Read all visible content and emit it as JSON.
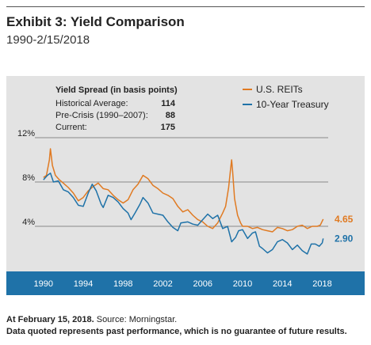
{
  "header": {
    "title": "Exhibit 3: Yield Comparison",
    "subtitle": "1990-2/15/2018"
  },
  "spread_box": {
    "title": "Yield Spread (in basis points)",
    "rows": [
      {
        "label": "Historical Average:",
        "value": "114"
      },
      {
        "label": "Pre-Crisis (1990–2007):",
        "value": "88"
      },
      {
        "label": "Current:",
        "value": "175"
      }
    ]
  },
  "colors": {
    "reits": "#e07a22",
    "treasury": "#1f72a8",
    "panel_bg": "#e3e3e3",
    "axis_bar": "#1f72a8"
  },
  "footer": {
    "date_bold": "At February 15, 2018.",
    "source": " Source: Morningstar.",
    "disclaimer": "Data quoted represents past performance, which is no guarantee of future results."
  },
  "chart_data": {
    "type": "line",
    "title": "Exhibit 3: Yield Comparison",
    "subtitle": "1990-2/15/2018",
    "xlabel": "",
    "ylabel": "",
    "ylim": [
      0,
      12
    ],
    "xlim": [
      1989.3,
      2018.6
    ],
    "y_ticks": [
      4,
      8,
      12
    ],
    "y_tick_labels": [
      "4%",
      "8%",
      "12%"
    ],
    "x_ticks": [
      1990,
      1994,
      1998,
      2002,
      2006,
      2010,
      2014,
      2018
    ],
    "x_tick_labels": [
      "1990",
      "1994",
      "1998",
      "2002",
      "2006",
      "2010",
      "2014",
      "2018"
    ],
    "grid": "horizontal",
    "legend_position": "top-right",
    "series": [
      {
        "name": "U.S. REITs",
        "color": "#e07a22",
        "end_label": "4.65",
        "points": [
          [
            1990.0,
            8.4
          ],
          [
            1990.3,
            8.6
          ],
          [
            1990.6,
            10.0
          ],
          [
            1990.7,
            11.0
          ],
          [
            1990.9,
            9.5
          ],
          [
            1991.2,
            8.6
          ],
          [
            1991.6,
            8.2
          ],
          [
            1992.0,
            7.9
          ],
          [
            1992.5,
            7.5
          ],
          [
            1993.0,
            7.0
          ],
          [
            1993.5,
            6.3
          ],
          [
            1994.0,
            6.6
          ],
          [
            1994.5,
            7.2
          ],
          [
            1995.0,
            7.6
          ],
          [
            1995.5,
            7.9
          ],
          [
            1996.0,
            7.4
          ],
          [
            1996.5,
            7.3
          ],
          [
            1997.0,
            6.8
          ],
          [
            1997.5,
            6.4
          ],
          [
            1998.0,
            6.1
          ],
          [
            1998.5,
            6.4
          ],
          [
            1999.0,
            7.3
          ],
          [
            1999.5,
            7.8
          ],
          [
            2000.0,
            8.6
          ],
          [
            2000.5,
            8.3
          ],
          [
            2001.0,
            7.7
          ],
          [
            2001.5,
            7.4
          ],
          [
            2002.0,
            7.0
          ],
          [
            2002.5,
            6.8
          ],
          [
            2003.0,
            6.5
          ],
          [
            2003.5,
            5.8
          ],
          [
            2004.0,
            5.3
          ],
          [
            2004.5,
            5.5
          ],
          [
            2005.0,
            5.0
          ],
          [
            2005.5,
            4.6
          ],
          [
            2006.0,
            4.4
          ],
          [
            2006.5,
            4.0
          ],
          [
            2007.0,
            3.8
          ],
          [
            2007.5,
            4.3
          ],
          [
            2008.0,
            5.2
          ],
          [
            2008.3,
            5.8
          ],
          [
            2008.6,
            7.5
          ],
          [
            2008.8,
            9.2
          ],
          [
            2008.9,
            10.0
          ],
          [
            2009.0,
            9.0
          ],
          [
            2009.2,
            6.5
          ],
          [
            2009.5,
            5.0
          ],
          [
            2009.8,
            4.3
          ],
          [
            2010.0,
            4.0
          ],
          [
            2010.5,
            4.0
          ],
          [
            2011.0,
            3.8
          ],
          [
            2011.5,
            3.9
          ],
          [
            2012.0,
            3.7
          ],
          [
            2012.5,
            3.6
          ],
          [
            2013.0,
            3.5
          ],
          [
            2013.5,
            3.9
          ],
          [
            2014.0,
            3.8
          ],
          [
            2014.5,
            3.6
          ],
          [
            2015.0,
            3.7
          ],
          [
            2015.5,
            4.0
          ],
          [
            2016.0,
            4.1
          ],
          [
            2016.5,
            3.8
          ],
          [
            2017.0,
            4.0
          ],
          [
            2017.5,
            4.0
          ],
          [
            2017.8,
            4.1
          ],
          [
            2018.1,
            4.65
          ]
        ]
      },
      {
        "name": "10-Year Treasury",
        "color": "#1f72a8",
        "end_label": "2.90",
        "points": [
          [
            1990.0,
            8.2
          ],
          [
            1990.4,
            8.6
          ],
          [
            1990.7,
            8.8
          ],
          [
            1991.0,
            8.0
          ],
          [
            1991.5,
            8.1
          ],
          [
            1992.0,
            7.3
          ],
          [
            1992.5,
            7.1
          ],
          [
            1993.0,
            6.6
          ],
          [
            1993.5,
            5.9
          ],
          [
            1994.0,
            5.8
          ],
          [
            1994.5,
            7.0
          ],
          [
            1994.9,
            7.8
          ],
          [
            1995.3,
            7.2
          ],
          [
            1995.8,
            6.0
          ],
          [
            1996.0,
            5.7
          ],
          [
            1996.5,
            6.8
          ],
          [
            1997.0,
            6.6
          ],
          [
            1997.5,
            6.2
          ],
          [
            1998.0,
            5.6
          ],
          [
            1998.5,
            5.2
          ],
          [
            1998.8,
            4.6
          ],
          [
            1999.2,
            5.2
          ],
          [
            1999.7,
            6.0
          ],
          [
            2000.0,
            6.6
          ],
          [
            2000.5,
            6.1
          ],
          [
            2001.0,
            5.2
          ],
          [
            2001.5,
            5.1
          ],
          [
            2002.0,
            5.0
          ],
          [
            2002.5,
            4.4
          ],
          [
            2003.0,
            3.9
          ],
          [
            2003.5,
            3.6
          ],
          [
            2003.8,
            4.3
          ],
          [
            2004.5,
            4.4
          ],
          [
            2005.0,
            4.2
          ],
          [
            2005.5,
            4.1
          ],
          [
            2006.0,
            4.6
          ],
          [
            2006.5,
            5.1
          ],
          [
            2007.0,
            4.7
          ],
          [
            2007.5,
            5.0
          ],
          [
            2008.0,
            3.8
          ],
          [
            2008.5,
            4.0
          ],
          [
            2008.9,
            2.6
          ],
          [
            2009.3,
            3.0
          ],
          [
            2009.6,
            3.6
          ],
          [
            2010.0,
            3.7
          ],
          [
            2010.5,
            2.9
          ],
          [
            2011.0,
            3.4
          ],
          [
            2011.3,
            3.5
          ],
          [
            2011.7,
            2.2
          ],
          [
            2012.0,
            2.0
          ],
          [
            2012.5,
            1.6
          ],
          [
            2013.0,
            1.9
          ],
          [
            2013.5,
            2.6
          ],
          [
            2014.0,
            2.8
          ],
          [
            2014.5,
            2.5
          ],
          [
            2015.0,
            1.9
          ],
          [
            2015.5,
            2.3
          ],
          [
            2016.0,
            1.8
          ],
          [
            2016.5,
            1.5
          ],
          [
            2016.9,
            2.4
          ],
          [
            2017.3,
            2.4
          ],
          [
            2017.7,
            2.2
          ],
          [
            2018.0,
            2.5
          ],
          [
            2018.1,
            2.9
          ]
        ]
      }
    ]
  }
}
